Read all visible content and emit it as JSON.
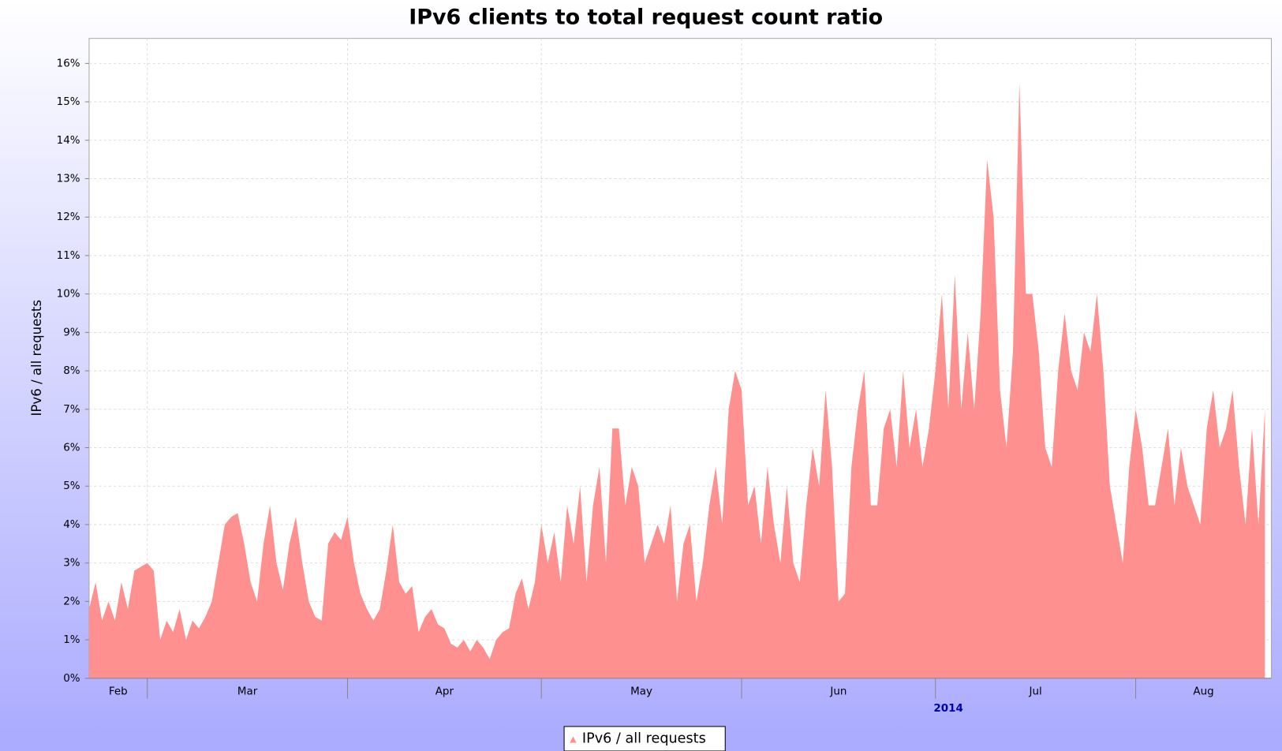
{
  "chart_data": {
    "type": "area",
    "title": "IPv6 clients to total request count ratio",
    "y_label": "IPv6 / all requests",
    "year_label": "2014",
    "categories": [
      "Feb",
      "Mar",
      "Apr",
      "May",
      "Jun",
      "Jul",
      "Aug"
    ],
    "series": [
      {
        "name": "IPv6 / all requests",
        "color": "#ff9090",
        "values": [
          [
            1.8,
            2.5,
            1.5,
            2.0,
            1.5,
            2.5,
            1.8,
            2.8,
            2.9
          ],
          [
            3.0,
            2.8,
            1.0,
            1.5,
            1.2,
            1.8,
            1.0,
            1.5,
            1.3,
            1.6,
            2.0,
            3.0,
            4.0,
            4.2,
            4.3,
            3.5,
            2.5,
            2.0,
            3.5,
            4.5,
            3.0,
            2.3,
            3.5,
            4.2,
            3.0,
            2.0,
            1.6,
            1.5,
            3.5,
            3.8,
            3.6
          ],
          [
            4.2,
            3.0,
            2.2,
            1.8,
            1.5,
            1.8,
            2.8,
            4.0,
            2.5,
            2.2,
            2.4,
            1.2,
            1.6,
            1.8,
            1.4,
            1.3,
            0.9,
            0.8,
            1.0,
            0.7,
            1.0,
            0.8,
            0.5,
            1.0,
            1.2,
            1.3,
            2.2,
            2.6,
            1.8,
            2.5
          ],
          [
            4.0,
            3.0,
            3.8,
            2.5,
            4.5,
            3.5,
            5.0,
            2.5,
            4.5,
            5.5,
            3.0,
            6.5,
            6.5,
            4.5,
            5.5,
            5.0,
            3.0,
            3.5,
            4.0,
            3.5,
            4.5,
            2.0,
            3.5,
            4.0,
            2.0,
            3.0,
            4.5,
            5.5,
            4.0,
            7.0,
            8.0
          ],
          [
            7.5,
            4.5,
            5.0,
            3.5,
            5.5,
            4.0,
            3.0,
            5.0,
            3.0,
            2.5,
            4.5,
            6.0,
            5.0,
            7.5,
            5.5,
            2.0,
            2.2,
            5.5,
            7.0,
            8.0,
            4.5,
            4.5,
            6.5,
            7.0,
            5.5,
            8.0,
            6.0,
            7.0,
            5.5,
            6.5
          ],
          [
            8.0,
            10.0,
            7.0,
            10.5,
            7.0,
            9.0,
            7.0,
            9.5,
            13.5,
            12.0,
            7.5,
            6.0,
            8.5,
            15.5,
            10.0,
            10.0,
            8.5,
            6.0,
            5.5,
            8.0,
            9.5,
            8.0,
            7.5,
            9.0,
            8.5,
            10.0,
            8.0,
            5.0,
            4.0,
            3.0,
            5.5
          ],
          [
            7.0,
            6.0,
            4.5,
            4.5,
            5.5,
            6.5,
            4.5,
            6.0,
            5.0,
            4.5,
            4.0,
            6.5,
            7.5,
            6.0,
            6.5,
            7.5,
            5.5,
            4.0,
            6.5,
            4.0,
            7.0
          ]
        ]
      }
    ],
    "ylim": [
      0,
      16.65
    ],
    "yticks": [
      {
        "value": 0,
        "label": "0%"
      },
      {
        "value": 1,
        "label": "1%"
      },
      {
        "value": 2,
        "label": "2%"
      },
      {
        "value": 3,
        "label": "3%"
      },
      {
        "value": 4,
        "label": "4%"
      },
      {
        "value": 5,
        "label": "5%"
      },
      {
        "value": 6,
        "label": "6%"
      },
      {
        "value": 7,
        "label": "7%"
      },
      {
        "value": 8,
        "label": "8%"
      },
      {
        "value": 9,
        "label": "9%"
      },
      {
        "value": 10,
        "label": "10%"
      },
      {
        "value": 11,
        "label": "11%"
      },
      {
        "value": 12,
        "label": "12%"
      },
      {
        "value": 13,
        "label": "13%"
      },
      {
        "value": 14,
        "label": "14%"
      },
      {
        "value": 15,
        "label": "15%"
      },
      {
        "value": 16,
        "label": "16%"
      }
    ],
    "grid": true,
    "legend": "bottom"
  }
}
